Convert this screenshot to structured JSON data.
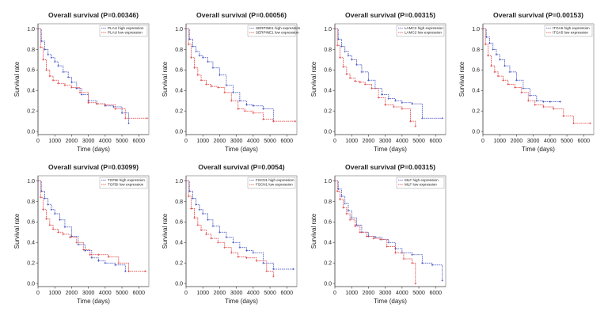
{
  "chart_data": [
    {
      "type": "line",
      "title": "Overall survival (P=0.00346)",
      "xlabel": "Time (days)",
      "ylabel": "Survival rate",
      "xlim": [
        0,
        6600
      ],
      "ylim": [
        -0.03,
        1.05
      ],
      "xticks": [
        0,
        1000,
        2000,
        3000,
        4000,
        5000,
        6000
      ],
      "yticks": [
        0.0,
        0.2,
        0.4,
        0.6,
        0.8,
        1.0
      ],
      "legend_position": "top-right",
      "series": [
        {
          "name": "PLAU high expression",
          "color": "#3344bb",
          "x": [
            0,
            200,
            400,
            600,
            800,
            1000,
            1200,
            1500,
            1800,
            2000,
            2300,
            2600,
            3000,
            3500,
            4000,
            4500,
            5000,
            5400
          ],
          "y": [
            1.0,
            0.88,
            0.8,
            0.75,
            0.72,
            0.68,
            0.64,
            0.58,
            0.53,
            0.48,
            0.42,
            0.36,
            0.3,
            0.27,
            0.25,
            0.24,
            0.18,
            0.08
          ]
        },
        {
          "name": "PLAU low expression",
          "color": "#dd3333",
          "x": [
            0,
            150,
            300,
            500,
            700,
            900,
            1200,
            1600,
            2000,
            2500,
            3000,
            3500,
            4000,
            4600,
            5200,
            6500
          ],
          "y": [
            1.0,
            0.82,
            0.7,
            0.6,
            0.54,
            0.5,
            0.47,
            0.45,
            0.43,
            0.38,
            0.28,
            0.27,
            0.26,
            0.22,
            0.13,
            0.13
          ]
        }
      ]
    },
    {
      "type": "line",
      "title": "Overall survival (P=0.00056)",
      "xlabel": "Time (days)",
      "ylabel": "Survival rate",
      "xlim": [
        0,
        6600
      ],
      "ylim": [
        -0.03,
        1.05
      ],
      "xticks": [
        0,
        1000,
        2000,
        3000,
        4000,
        5000,
        6000
      ],
      "yticks": [
        0.0,
        0.2,
        0.4,
        0.6,
        0.8,
        1.0
      ],
      "legend_position": "top-right",
      "series": [
        {
          "name": "SERPINE1 high expression",
          "color": "#3344bb",
          "x": [
            0,
            200,
            400,
            600,
            800,
            1000,
            1300,
            1600,
            2000,
            2400,
            2800,
            3200,
            3600,
            4000,
            4600,
            5200
          ],
          "y": [
            1.0,
            0.9,
            0.83,
            0.78,
            0.74,
            0.72,
            0.68,
            0.62,
            0.55,
            0.45,
            0.38,
            0.3,
            0.26,
            0.25,
            0.22,
            0.1
          ]
        },
        {
          "name": "SERPINE1 low expression",
          "color": "#dd3333",
          "x": [
            0,
            150,
            300,
            500,
            700,
            900,
            1200,
            1500,
            1900,
            2300,
            2700,
            3100,
            3500,
            4000,
            4600,
            5200,
            6500
          ],
          "y": [
            1.0,
            0.85,
            0.72,
            0.62,
            0.55,
            0.5,
            0.46,
            0.44,
            0.43,
            0.38,
            0.3,
            0.22,
            0.2,
            0.18,
            0.12,
            0.1,
            0.1
          ]
        }
      ]
    },
    {
      "type": "line",
      "title": "Overall survival (P=0.00315)",
      "xlabel": "Time (days)",
      "ylabel": "Survival rate",
      "xlim": [
        0,
        6600
      ],
      "ylim": [
        -0.03,
        1.05
      ],
      "xticks": [
        0,
        1000,
        2000,
        3000,
        4000,
        5000,
        6000
      ],
      "yticks": [
        0.0,
        0.2,
        0.4,
        0.6,
        0.8,
        1.0
      ],
      "legend_position": "top-right",
      "series": [
        {
          "name": "LAMC2 high expression",
          "color": "#3344bb",
          "x": [
            0,
            200,
            400,
            600,
            800,
            1000,
            1300,
            1600,
            2000,
            2400,
            2800,
            3200,
            3600,
            4000,
            4600,
            5200,
            6400
          ],
          "y": [
            1.0,
            0.9,
            0.83,
            0.78,
            0.74,
            0.7,
            0.65,
            0.58,
            0.5,
            0.42,
            0.36,
            0.32,
            0.3,
            0.28,
            0.27,
            0.13,
            0.13
          ]
        },
        {
          "name": "LAMC2 low expression",
          "color": "#dd3333",
          "x": [
            0,
            150,
            300,
            500,
            700,
            900,
            1200,
            1500,
            1800,
            2200,
            2600,
            3000,
            3500,
            4000,
            4500,
            4800
          ],
          "y": [
            1.0,
            0.84,
            0.72,
            0.63,
            0.56,
            0.52,
            0.49,
            0.48,
            0.46,
            0.42,
            0.33,
            0.26,
            0.24,
            0.22,
            0.1,
            0.05
          ]
        }
      ]
    },
    {
      "type": "line",
      "title": "Overall survival (P=0.00153)",
      "xlabel": "Time (days)",
      "ylabel": "Survival rate",
      "xlim": [
        0,
        6600
      ],
      "ylim": [
        -0.03,
        1.05
      ],
      "xticks": [
        0,
        1000,
        2000,
        3000,
        4000,
        5000,
        6000
      ],
      "yticks": [
        0.0,
        0.2,
        0.4,
        0.6,
        0.8,
        1.0
      ],
      "legend_position": "top-right",
      "series": [
        {
          "name": "ITGA5 high expression",
          "color": "#3344bb",
          "x": [
            0,
            200,
            400,
            600,
            800,
            1000,
            1300,
            1600,
            2000,
            2400,
            2800,
            3200,
            3600,
            4000,
            4600
          ],
          "y": [
            1.0,
            0.92,
            0.86,
            0.8,
            0.75,
            0.7,
            0.64,
            0.58,
            0.5,
            0.42,
            0.35,
            0.3,
            0.29,
            0.29,
            0.29
          ]
        },
        {
          "name": "ITGA5 low expression",
          "color": "#dd3333",
          "x": [
            0,
            150,
            300,
            500,
            700,
            900,
            1200,
            1500,
            1900,
            2300,
            2700,
            3100,
            3600,
            4200,
            4800,
            5400,
            6400
          ],
          "y": [
            1.0,
            0.85,
            0.74,
            0.64,
            0.58,
            0.54,
            0.5,
            0.46,
            0.43,
            0.38,
            0.3,
            0.26,
            0.24,
            0.22,
            0.15,
            0.08,
            0.08
          ]
        }
      ]
    },
    {
      "type": "line",
      "title": "Overall survival (P=0.03099)",
      "xlabel": "Time (days)",
      "ylabel": "Survival rate",
      "xlim": [
        0,
        6600
      ],
      "ylim": [
        -0.03,
        1.05
      ],
      "xticks": [
        0,
        1000,
        2000,
        3000,
        4000,
        5000,
        6000
      ],
      "yticks": [
        0.0,
        0.2,
        0.4,
        0.6,
        0.8,
        1.0
      ],
      "legend_position": "top-right",
      "series": [
        {
          "name": "TGFBI high expression",
          "color": "#3344bb",
          "x": [
            0,
            200,
            400,
            600,
            800,
            1000,
            1300,
            1600,
            2000,
            2400,
            2800,
            3200,
            3600,
            4000,
            4600,
            5200
          ],
          "y": [
            1.0,
            0.9,
            0.83,
            0.77,
            0.72,
            0.68,
            0.62,
            0.55,
            0.46,
            0.38,
            0.32,
            0.25,
            0.22,
            0.2,
            0.18,
            0.12
          ]
        },
        {
          "name": "TGFBI low expression",
          "color": "#dd3333",
          "x": [
            0,
            150,
            300,
            500,
            700,
            900,
            1200,
            1500,
            1900,
            2300,
            2700,
            3100,
            3600,
            4200,
            4800,
            5400,
            6400
          ],
          "y": [
            1.0,
            0.84,
            0.72,
            0.63,
            0.57,
            0.53,
            0.5,
            0.48,
            0.45,
            0.4,
            0.33,
            0.28,
            0.28,
            0.26,
            0.2,
            0.12,
            0.12
          ]
        }
      ]
    },
    {
      "type": "line",
      "title": "Overall survival (P=0.0054)",
      "xlabel": "Time (days)",
      "ylabel": "Survival rate",
      "xlim": [
        0,
        6600
      ],
      "ylim": [
        -0.03,
        1.05
      ],
      "xticks": [
        0,
        1000,
        2000,
        3000,
        4000,
        5000,
        6000
      ],
      "yticks": [
        0.0,
        0.2,
        0.4,
        0.6,
        0.8,
        1.0
      ],
      "legend_position": "top-right",
      "series": [
        {
          "name": "FSCN1 high expression",
          "color": "#3344bb",
          "x": [
            0,
            200,
            400,
            600,
            800,
            1000,
            1300,
            1600,
            2000,
            2400,
            2800,
            3200,
            3600,
            4000,
            4600,
            5200,
            6400
          ],
          "y": [
            1.0,
            0.9,
            0.83,
            0.77,
            0.72,
            0.68,
            0.62,
            0.56,
            0.5,
            0.45,
            0.4,
            0.35,
            0.32,
            0.3,
            0.2,
            0.14,
            0.14
          ]
        },
        {
          "name": "FSCN1 low expression",
          "color": "#dd3333",
          "x": [
            0,
            150,
            300,
            500,
            700,
            900,
            1200,
            1500,
            1900,
            2300,
            2700,
            3100,
            3600,
            4200,
            4800,
            5200
          ],
          "y": [
            1.0,
            0.85,
            0.73,
            0.64,
            0.57,
            0.52,
            0.48,
            0.44,
            0.4,
            0.35,
            0.3,
            0.26,
            0.25,
            0.22,
            0.12,
            0.07
          ]
        }
      ]
    },
    {
      "type": "line",
      "title": "Overall survival (P=0.00315)",
      "xlabel": "Time (days)",
      "ylabel": "Survival rate",
      "xlim": [
        0,
        6600
      ],
      "ylim": [
        -0.03,
        1.05
      ],
      "xticks": [
        0,
        1000,
        2000,
        3000,
        4000,
        5000,
        6000
      ],
      "yticks": [
        0.0,
        0.2,
        0.4,
        0.6,
        0.8,
        1.0
      ],
      "legend_position": "top-right",
      "series": [
        {
          "name": "MLF high expression",
          "color": "#3344bb",
          "x": [
            0,
            200,
            400,
            600,
            800,
            1000,
            1300,
            1600,
            2000,
            2400,
            2800,
            3200,
            3600,
            4000,
            4600,
            5200,
            5800,
            6400
          ],
          "y": [
            1.0,
            0.92,
            0.85,
            0.78,
            0.71,
            0.64,
            0.57,
            0.5,
            0.46,
            0.45,
            0.43,
            0.4,
            0.34,
            0.3,
            0.28,
            0.2,
            0.18,
            0.03
          ]
        },
        {
          "name": "MLF low expression",
          "color": "#dd3333",
          "x": [
            0,
            150,
            300,
            500,
            700,
            900,
            1200,
            1500,
            1900,
            2300,
            2700,
            3100,
            3600,
            4100,
            4600,
            4800
          ],
          "y": [
            1.0,
            0.9,
            0.82,
            0.74,
            0.68,
            0.62,
            0.56,
            0.5,
            0.46,
            0.44,
            0.43,
            0.36,
            0.3,
            0.24,
            0.2,
            0.0
          ]
        }
      ]
    }
  ]
}
